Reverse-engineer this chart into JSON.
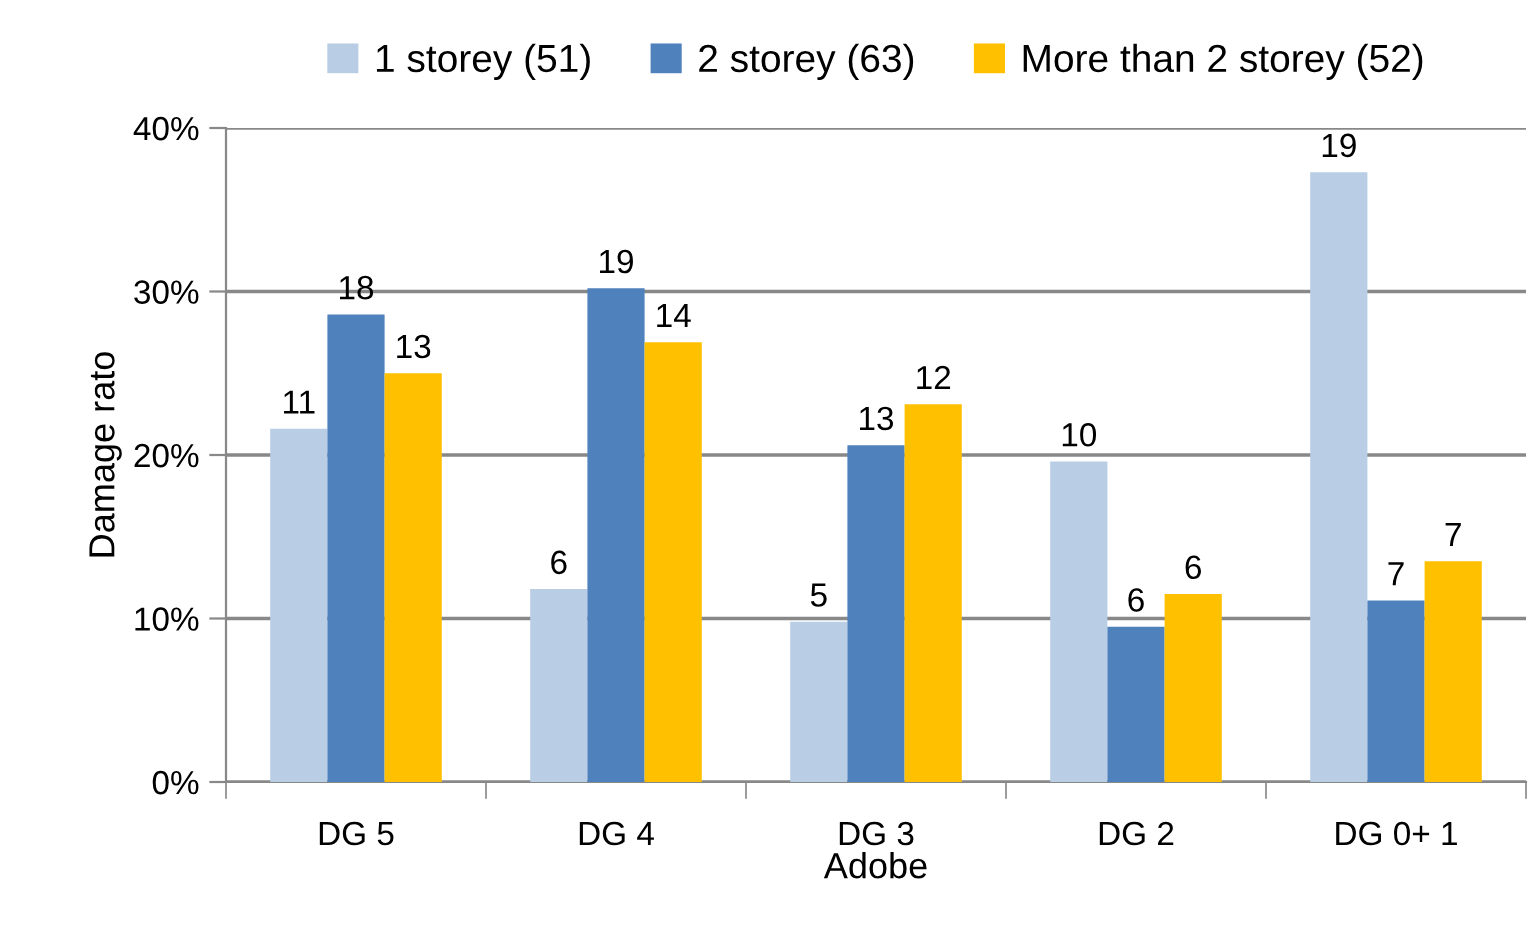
{
  "chart_data": {
    "type": "bar",
    "xlabel": "Adobe",
    "ylabel": "Damage rato",
    "categories": [
      "DG 5",
      "DG 4",
      "DG 3",
      "DG 2",
      "DG 0+ 1"
    ],
    "series": [
      {
        "name": "1 storey (51)",
        "color": "#b9cde5",
        "values": [
          21.6,
          11.8,
          9.8,
          19.6,
          37.3
        ]
      },
      {
        "name": "2 storey (63)",
        "color": "#4f81bd",
        "values": [
          28.6,
          30.2,
          20.6,
          9.5,
          11.1
        ]
      },
      {
        "name": "More than 2 storey (52)",
        "color": "#ffc000",
        "values": [
          25.0,
          26.9,
          23.1,
          11.5,
          13.5
        ]
      }
    ],
    "annotations": [
      "11",
      "6",
      "5",
      "10",
      "19",
      "18",
      "19",
      "13",
      "6",
      "7",
      "13",
      "14",
      "12",
      "6",
      "7"
    ],
    "ylim": [
      0,
      40
    ],
    "yticks": [
      {
        "value": 0,
        "label": "0%"
      },
      {
        "value": 10,
        "label": "10%"
      },
      {
        "value": 20,
        "label": "20%"
      },
      {
        "value": 30,
        "label": "30%"
      },
      {
        "value": 40,
        "label": "40%"
      }
    ],
    "grid": "y",
    "legend": "top"
  }
}
